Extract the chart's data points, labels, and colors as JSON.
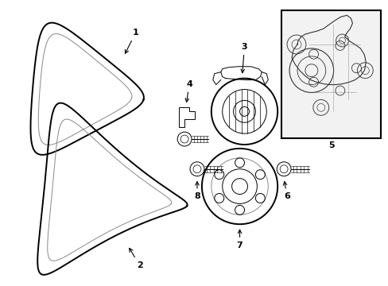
{
  "background_color": "#ffffff",
  "line_color": "#000000",
  "gray_color": "#888888",
  "box_fill": "#f0f0f0",
  "figsize": [
    4.89,
    3.6
  ],
  "dpi": 100
}
